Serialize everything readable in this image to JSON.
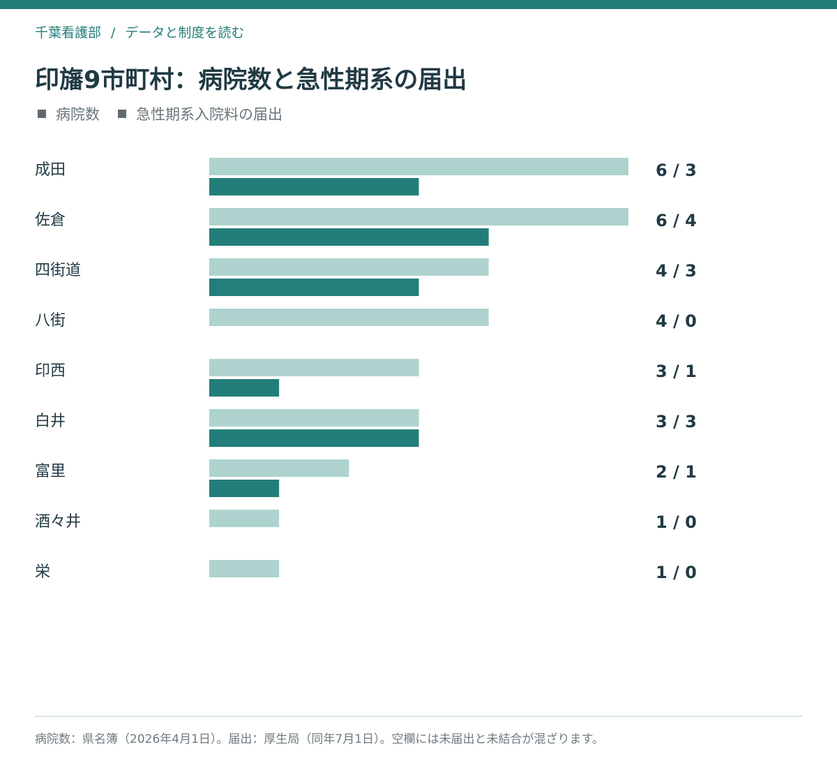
{
  "breadcrumb": {
    "site": "千葉看護部",
    "separator": "/",
    "page": "データと制度を読む"
  },
  "title": "印旛9市町村：病院数と急性期系の届出",
  "legend": [
    {
      "label": "病院数",
      "color": "#5f6b70"
    },
    {
      "label": "急性期系入院料の届出",
      "color": "#5f6b70"
    }
  ],
  "colors": {
    "accent": "#237e7a",
    "hospitals_bar": "#aed3ce",
    "filings_bar": "#237e7a",
    "label_text": "#213a44",
    "value_text": "#213a44"
  },
  "chart_data": {
    "type": "bar",
    "orientation": "horizontal",
    "categories": [
      "成田",
      "佐倉",
      "四街道",
      "八街",
      "印西",
      "白井",
      "富里",
      "酒々井",
      "栄"
    ],
    "series": [
      {
        "name": "病院数",
        "values": [
          6,
          6,
          4,
          4,
          3,
          3,
          2,
          1,
          1
        ]
      },
      {
        "name": "急性期系入院料の届出",
        "values": [
          3,
          4,
          3,
          0,
          1,
          3,
          1,
          0,
          0
        ]
      }
    ],
    "value_labels": [
      "6 / 3",
      "6 / 4",
      "4 / 3",
      "4 / 0",
      "3 / 1",
      "3 / 3",
      "2 / 1",
      "1 / 0",
      "1 / 0"
    ],
    "xlim": [
      0,
      6
    ],
    "grid": false
  },
  "footnote": "病院数：県名簿（2026年4月1日）。届出：厚生局（同年7月1日）。空欄には未届出と未結合が混ざります。"
}
